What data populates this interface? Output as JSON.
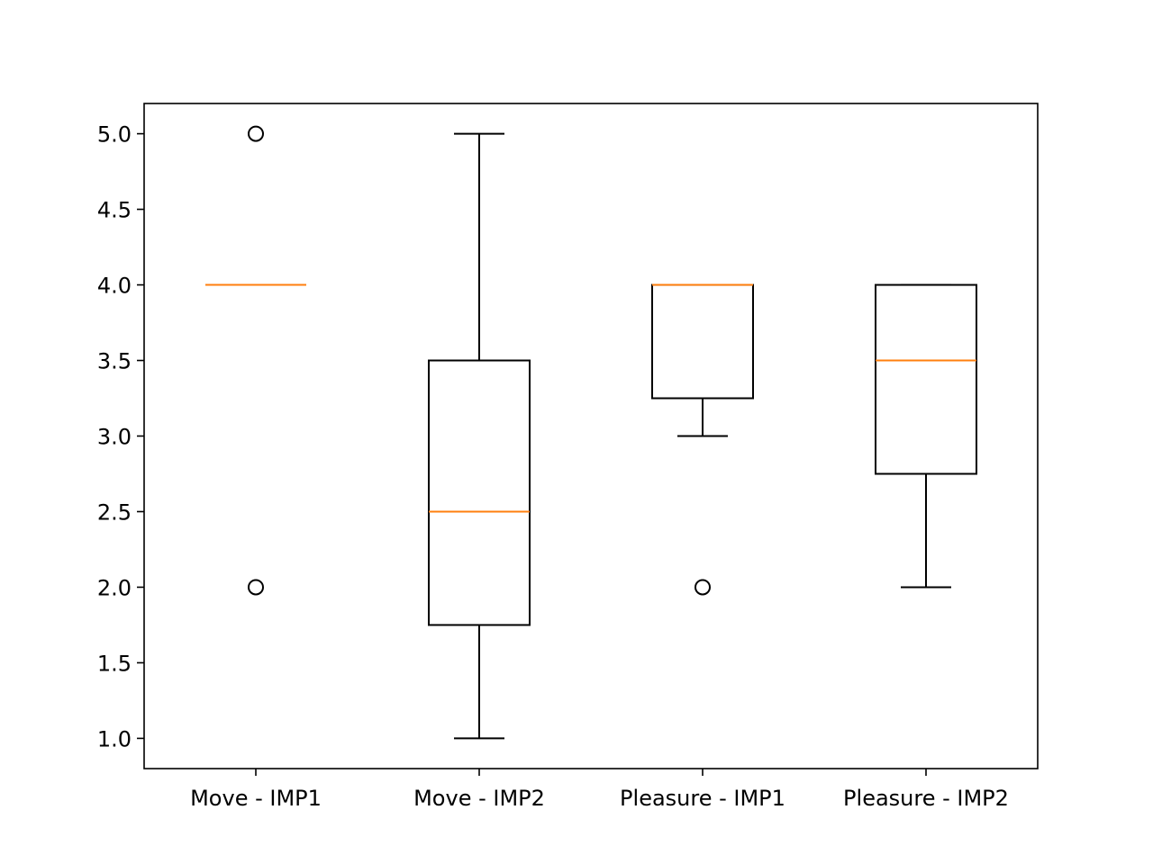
{
  "chart_data": {
    "type": "box",
    "categories": [
      "Move - IMP1",
      "Move - IMP2",
      "Pleasure - IMP1",
      "Pleasure - IMP2"
    ],
    "boxes": [
      {
        "name": "Move - IMP1",
        "whisker_low": 4.0,
        "q1": 4.0,
        "median": 4.0,
        "q3": 4.0,
        "whisker_high": 4.0,
        "outliers": [
          5.0,
          2.0
        ]
      },
      {
        "name": "Move - IMP2",
        "whisker_low": 1.0,
        "q1": 1.75,
        "median": 2.5,
        "q3": 3.5,
        "whisker_high": 5.0,
        "outliers": []
      },
      {
        "name": "Pleasure - IMP1",
        "whisker_low": 3.0,
        "q1": 3.25,
        "median": 4.0,
        "q3": 4.0,
        "whisker_high": 4.0,
        "outliers": [
          2.0
        ]
      },
      {
        "name": "Pleasure - IMP2",
        "whisker_low": 2.0,
        "q1": 2.75,
        "median": 3.5,
        "q3": 4.0,
        "whisker_high": 4.0,
        "outliers": []
      }
    ],
    "yticks": [
      "1.0",
      "1.5",
      "2.0",
      "2.5",
      "3.0",
      "3.5",
      "4.0",
      "4.5",
      "5.0"
    ],
    "ylim": [
      0.8,
      5.2
    ],
    "title": "",
    "xlabel": "",
    "ylabel": "",
    "grid": false,
    "colors": {
      "box": "#000000",
      "median": "#ff7f0e"
    }
  }
}
